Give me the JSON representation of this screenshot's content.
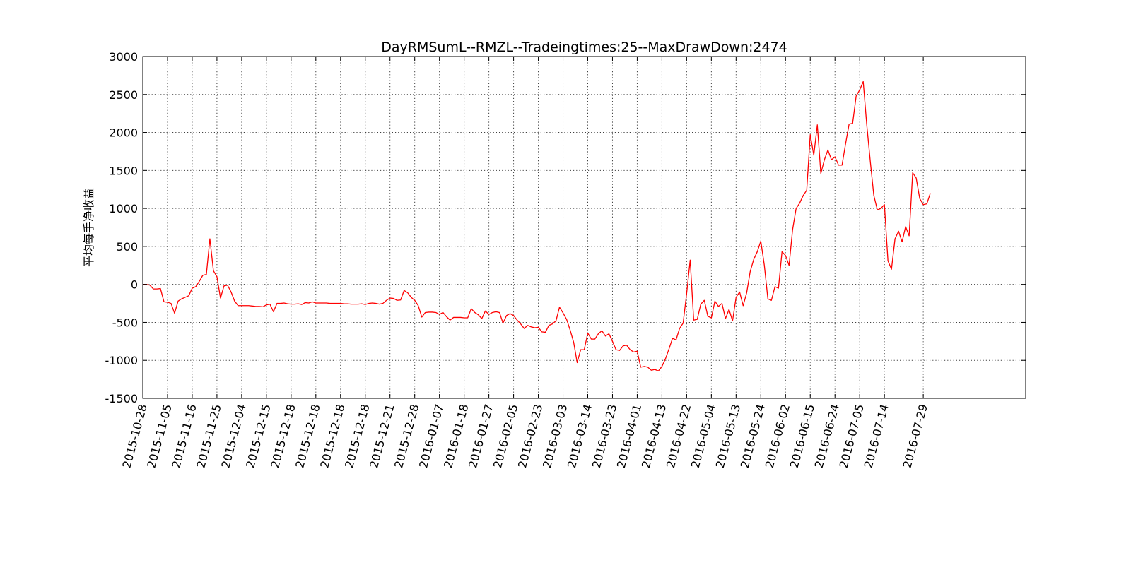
{
  "chart_data": {
    "type": "line",
    "title": "DayRMSumL--RMZL--Tradeingtimes:25--MaxDrawDown:2474",
    "xlabel": "",
    "ylabel": "平均每手净收益",
    "ylim": [
      -1500,
      3000
    ],
    "yticks": [
      -1500,
      -1000,
      -500,
      0,
      500,
      1000,
      1500,
      2000,
      2500,
      3000
    ],
    "x_tick_labels": [
      "2015-10-28",
      "2015-11-05",
      "2015-11-16",
      "2015-11-25",
      "2015-12-04",
      "2015-12-15",
      "2015-12-18",
      "2015-12-18",
      "2015-12-18",
      "2015-12-18",
      "2015-12-21",
      "2015-12-28",
      "2016-01-07",
      "2016-01-18",
      "2016-01-27",
      "2016-02-05",
      "2016-02-23",
      "2016-03-03",
      "2016-03-14",
      "2016-03-23",
      "2016-04-01",
      "2016-04-13",
      "2016-04-22",
      "2016-05-04",
      "2016-05-13",
      "2016-05-24",
      "2016-06-02",
      "2016-06-15",
      "2016-06-24",
      "2016-07-05",
      "2016-07-14",
      "2016-07-29"
    ],
    "x_tick_positions": [
      0,
      7,
      14,
      21,
      28,
      35,
      42,
      49,
      56,
      63,
      70,
      77,
      84,
      91,
      98,
      105,
      112,
      119,
      126,
      133,
      140,
      147,
      154,
      161,
      168,
      175,
      182,
      189,
      196,
      203,
      210,
      221
    ],
    "xlim": [
      0,
      250
    ],
    "grid": true,
    "series": [
      {
        "color": "#ff0000",
        "values": [
          0,
          0,
          -10,
          -60,
          -60,
          -55,
          -230,
          -235,
          -250,
          -380,
          -220,
          -190,
          -170,
          -150,
          -50,
          -30,
          40,
          120,
          130,
          600,
          180,
          100,
          -180,
          -20,
          -10,
          -100,
          -220,
          -280,
          -280,
          -280,
          -280,
          -285,
          -290,
          -290,
          -295,
          -270,
          -260,
          -360,
          -250,
          -250,
          -245,
          -255,
          -260,
          -260,
          -255,
          -265,
          -240,
          -245,
          -230,
          -245,
          -245,
          -245,
          -245,
          -250,
          -250,
          -250,
          -250,
          -255,
          -255,
          -260,
          -260,
          -260,
          -255,
          -265,
          -250,
          -245,
          -250,
          -260,
          -250,
          -210,
          -180,
          -185,
          -210,
          -205,
          -80,
          -110,
          -170,
          -210,
          -280,
          -430,
          -370,
          -365,
          -365,
          -370,
          -395,
          -370,
          -425,
          -470,
          -435,
          -435,
          -435,
          -440,
          -440,
          -320,
          -370,
          -400,
          -450,
          -350,
          -395,
          -370,
          -360,
          -370,
          -510,
          -410,
          -385,
          -410,
          -470,
          -520,
          -580,
          -540,
          -560,
          -570,
          -565,
          -625,
          -630,
          -540,
          -520,
          -480,
          -300,
          -375,
          -460,
          -600,
          -760,
          -1030,
          -860,
          -860,
          -640,
          -720,
          -720,
          -650,
          -610,
          -680,
          -650,
          -750,
          -860,
          -870,
          -810,
          -800,
          -860,
          -890,
          -880,
          -1090,
          -1080,
          -1090,
          -1130,
          -1120,
          -1140,
          -1080,
          -980,
          -850,
          -710,
          -730,
          -580,
          -510,
          -120,
          320,
          -470,
          -460,
          -260,
          -210,
          -420,
          -440,
          -220,
          -290,
          -250,
          -450,
          -330,
          -480,
          -170,
          -100,
          -280,
          -110,
          170,
          330,
          430,
          570,
          250,
          -190,
          -210,
          -30,
          -50,
          430,
          380,
          250,
          720,
          1000,
          1070,
          1170,
          1240,
          1970,
          1700,
          2100,
          1460,
          1640,
          1770,
          1640,
          1680,
          1570,
          1570,
          1850,
          2110,
          2120,
          2480,
          2560,
          2670,
          2100,
          1620,
          1170,
          980,
          1000,
          1050,
          310,
          200,
          600,
          700,
          560,
          760,
          640,
          1470,
          1400,
          1130,
          1050,
          1060,
          1200
        ]
      }
    ]
  }
}
